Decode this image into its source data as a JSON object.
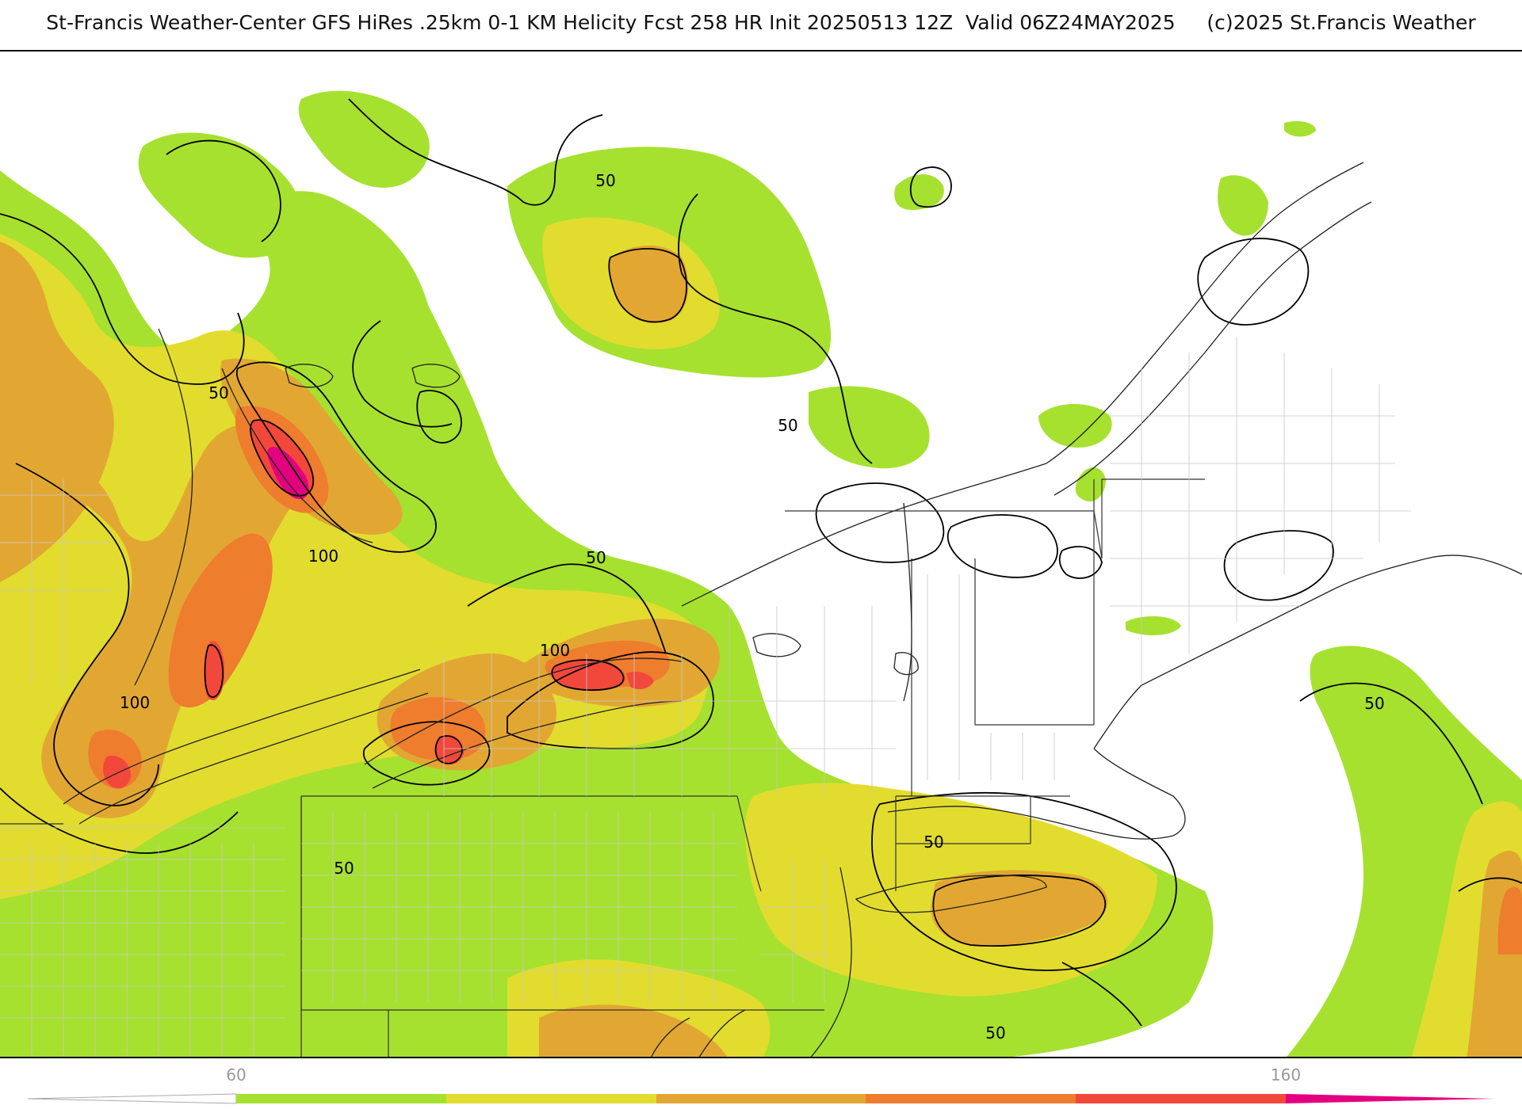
{
  "title": {
    "main": "St-Francis Weather-Center GFS HiRes .25km 0-1 KM Helicity Fcst 258 HR Init 20250513 12Z  Valid 06Z24MAY2025",
    "copyright": "(c)2025 St.Francis Weather"
  },
  "map": {
    "field": "0-1 KM Helicity",
    "region": "Northeastern United States",
    "contour_labels": [
      "50",
      "50",
      "50",
      "50",
      "50",
      "50",
      "50",
      "50",
      "50",
      "100",
      "100",
      "100"
    ],
    "fill_colors": [
      "#a6e12f",
      "#e2dc2f",
      "#e2a733",
      "#ee7d2e",
      "#f2483c",
      "#e3007f"
    ]
  },
  "colorbar": {
    "tick_labels": [
      "60",
      "160"
    ],
    "colors": [
      "#a6e12f",
      "#e2dc2f",
      "#e2a733",
      "#ee7d2e",
      "#f2483c",
      "#e3007f"
    ]
  }
}
